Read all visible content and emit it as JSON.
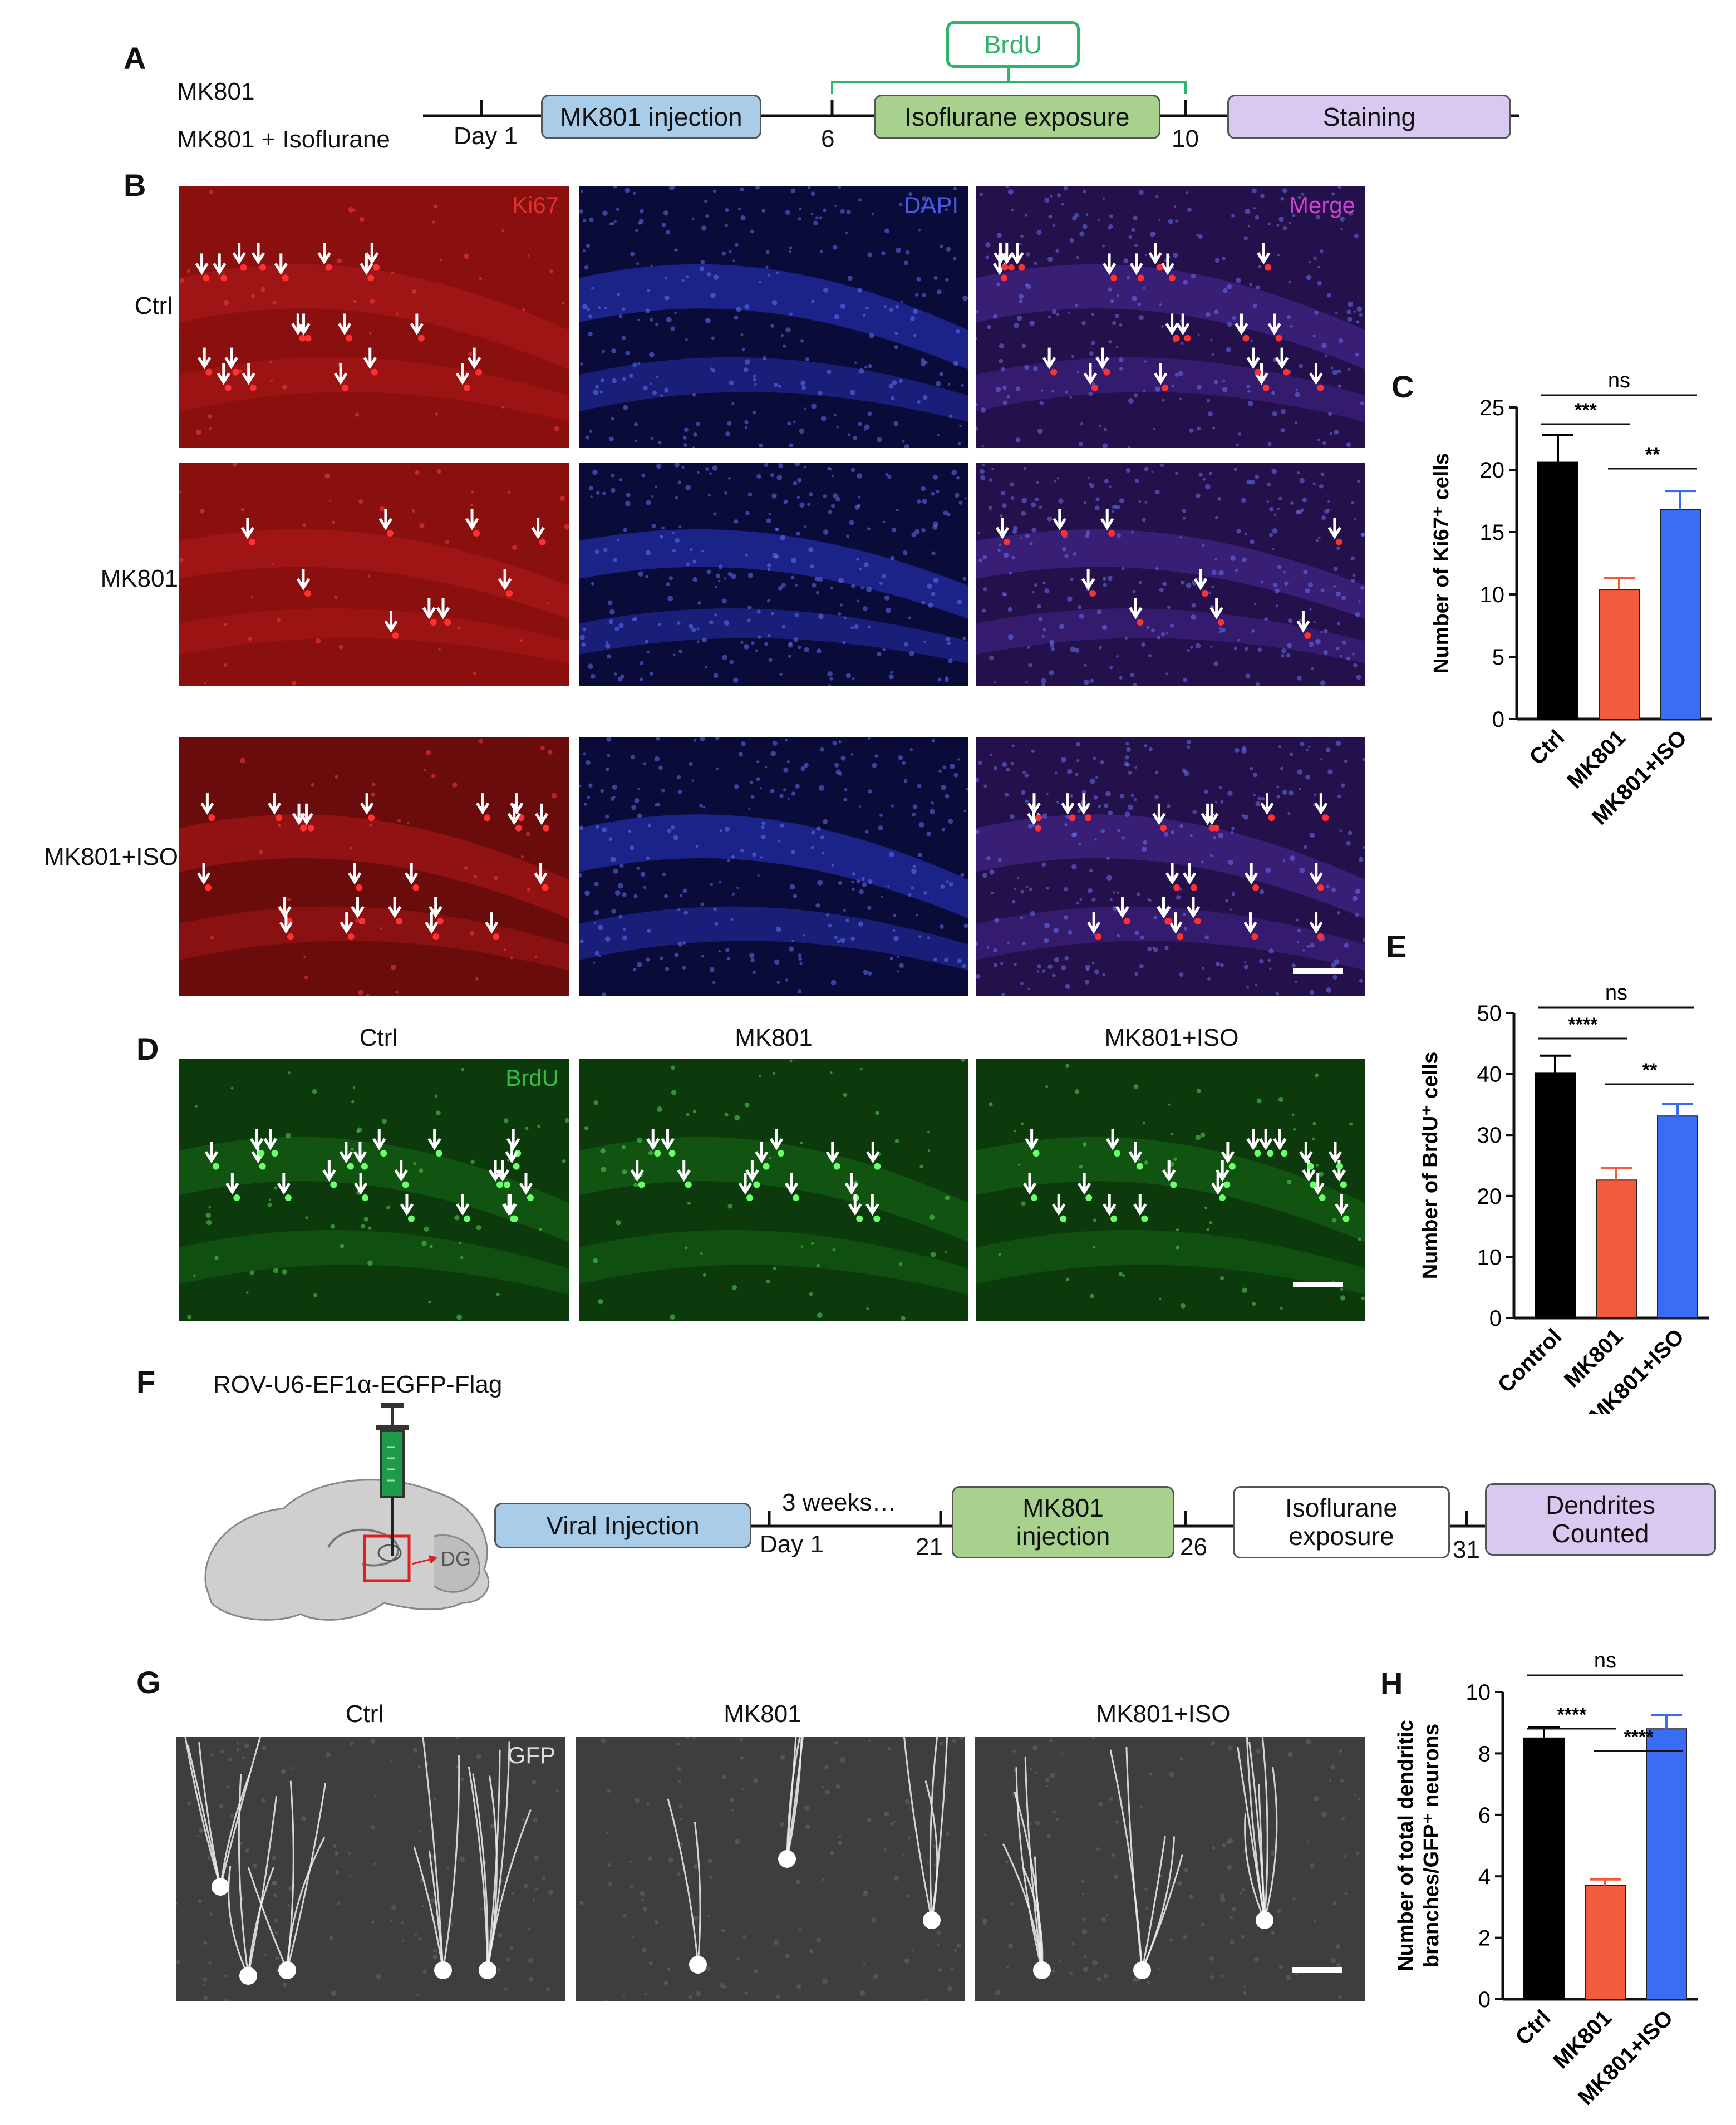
{
  "panelA": {
    "label": "A",
    "groups": [
      "MK801",
      "MK801 + Isoflurane"
    ],
    "brdu_label": "BrdU",
    "ticks": [
      "Day 1",
      "6",
      "10"
    ],
    "boxes": {
      "injection": "MK801 injection",
      "exposure": "Isoflurane exposure",
      "staining": "Staining"
    },
    "colors": {
      "injection": "#a9cde9",
      "exposure": "#a9d18e",
      "staining": "#d9c8f0",
      "brdu": "#2fb56a"
    }
  },
  "panelB": {
    "label": "B",
    "rows": [
      "Ctrl",
      "MK801",
      "MK801+ISO"
    ],
    "channels": [
      "Ki67",
      "DAPI",
      "Merge"
    ],
    "channel_colors": [
      "#e03030",
      "#4a5ae8",
      "#d040d0"
    ]
  },
  "panelD": {
    "label": "D",
    "columns": [
      "Ctrl",
      "MK801",
      "MK801+ISO"
    ],
    "channel": "BrdU",
    "channel_color": "#36c04a"
  },
  "panelF": {
    "label": "F",
    "virus": "ROV-U6-EF1α-EGFP-Flag",
    "region": "DG",
    "boxes": {
      "viral": "Viral Injection",
      "mk801": "MK801\ninjection",
      "iso": "Isoflurane\nexposure",
      "dendrites": "Dendrites\nCounted"
    },
    "texts": {
      "weeks": "3 weeks…",
      "day1": "Day 1",
      "t21": "21",
      "t26": "26",
      "t31": "31"
    },
    "colors": {
      "viral": "#a9cde9",
      "mk801": "#a9d18e",
      "iso": "#ffffff",
      "dendrites": "#d9c8f0"
    }
  },
  "panelG": {
    "label": "G",
    "columns": [
      "Ctrl",
      "MK801",
      "MK801+ISO"
    ],
    "channel": "GFP"
  },
  "chart_data": [
    {
      "panel": "C",
      "type": "bar",
      "categories": [
        "Ctrl",
        "MK801",
        "MK801+ISO"
      ],
      "values": [
        20.6,
        10.4,
        16.8
      ],
      "errors": [
        2.2,
        0.9,
        1.5
      ],
      "colors": [
        "#000000",
        "#f45a3c",
        "#3a6cf4"
      ],
      "ylabel": "Number of Ki67⁺ cells",
      "ylim": [
        0,
        25
      ],
      "yticks": [
        0,
        5,
        10,
        15,
        20,
        25
      ],
      "significance": [
        {
          "from": 0,
          "to": 2,
          "label": "ns"
        },
        {
          "from": 0,
          "to": 1,
          "label": "***"
        },
        {
          "from": 1,
          "to": 2,
          "label": "**"
        }
      ]
    },
    {
      "panel": "E",
      "type": "bar",
      "categories": [
        "Control",
        "MK801",
        "MK801+ISO"
      ],
      "values": [
        40.2,
        22.6,
        33.1
      ],
      "errors": [
        2.8,
        2.0,
        2.0
      ],
      "colors": [
        "#000000",
        "#f45a3c",
        "#3a6cf4"
      ],
      "ylabel": "Number of BrdU⁺ cells",
      "ylim": [
        0,
        50
      ],
      "yticks": [
        0,
        10,
        20,
        30,
        40,
        50
      ],
      "significance": [
        {
          "from": 0,
          "to": 2,
          "label": "ns"
        },
        {
          "from": 0,
          "to": 1,
          "label": "****"
        },
        {
          "from": 1,
          "to": 2,
          "label": "**"
        }
      ]
    },
    {
      "panel": "H",
      "type": "bar",
      "categories": [
        "Ctrl",
        "MK801",
        "MK801+ISO"
      ],
      "values": [
        8.5,
        3.7,
        8.8
      ],
      "errors": [
        0.35,
        0.2,
        0.45
      ],
      "colors": [
        "#000000",
        "#f45a3c",
        "#3a6cf4"
      ],
      "ylabel": "Number of total dendritic branches/GFP⁺ neurons",
      "ylim": [
        0,
        10
      ],
      "yticks": [
        0,
        2,
        4,
        6,
        8,
        10
      ],
      "significance": [
        {
          "from": 0,
          "to": 2,
          "label": "ns"
        },
        {
          "from": 0,
          "to": 1,
          "label": "****"
        },
        {
          "from": 1,
          "to": 2,
          "label": "****"
        }
      ]
    }
  ]
}
